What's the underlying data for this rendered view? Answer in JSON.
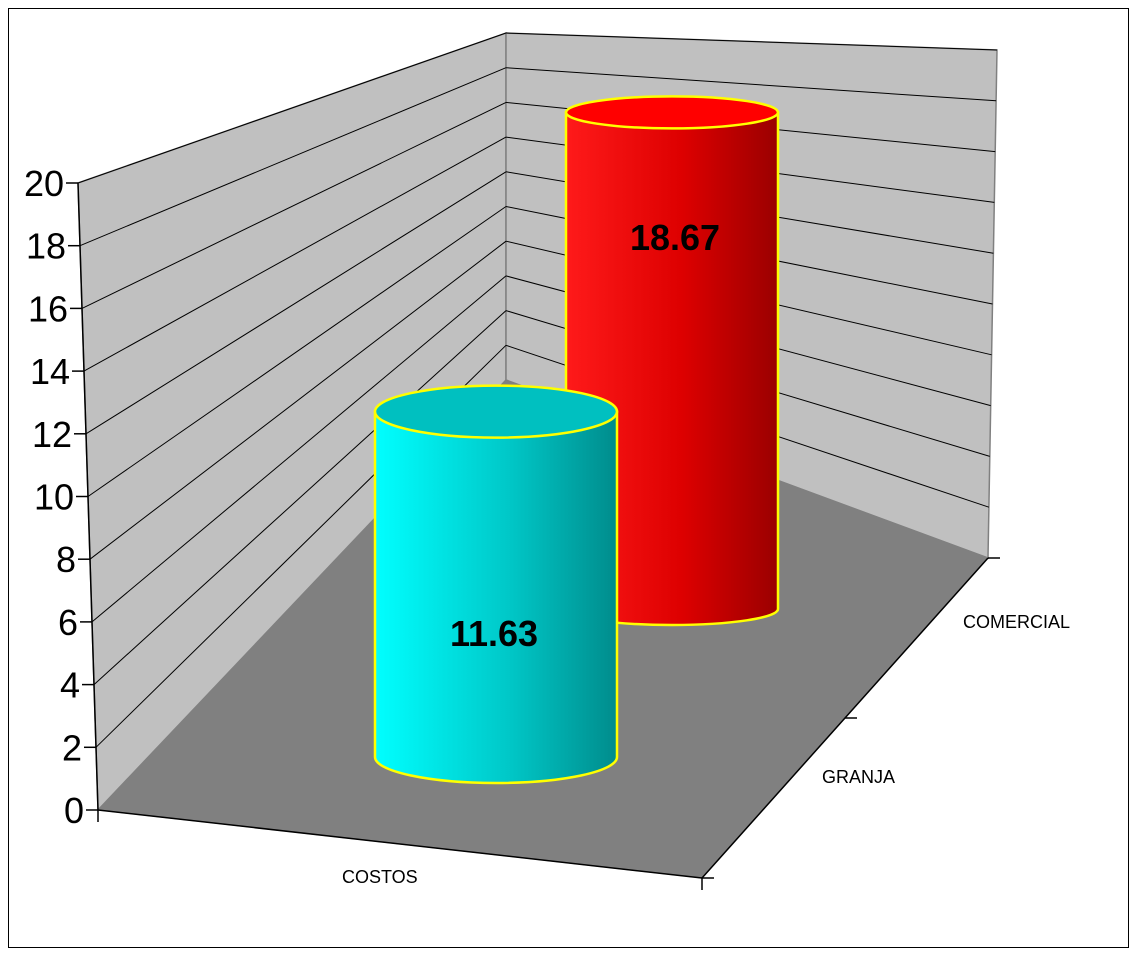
{
  "chart_data": {
    "type": "bar",
    "shape": "cylinder-3d",
    "x_category": "COSTOS",
    "depth_categories": [
      "GRANJA",
      "COMERCIAL"
    ],
    "series": [
      {
        "name": "GRANJA",
        "values": [
          11.63
        ],
        "color": "#00e5e5",
        "outline": "#ffff00"
      },
      {
        "name": "COMERCIAL",
        "values": [
          18.67
        ],
        "color": "#ff0000",
        "outline": "#ffff00"
      }
    ],
    "data_labels": [
      "11.63",
      "18.67"
    ],
    "ylim": [
      0,
      20
    ],
    "yticks": [
      "0",
      "2",
      "4",
      "6",
      "8",
      "10",
      "12",
      "14",
      "16",
      "18",
      "20"
    ],
    "grid": true,
    "legend": "none",
    "wall_color": "#c0c0c0",
    "floor_color": "#808080"
  }
}
